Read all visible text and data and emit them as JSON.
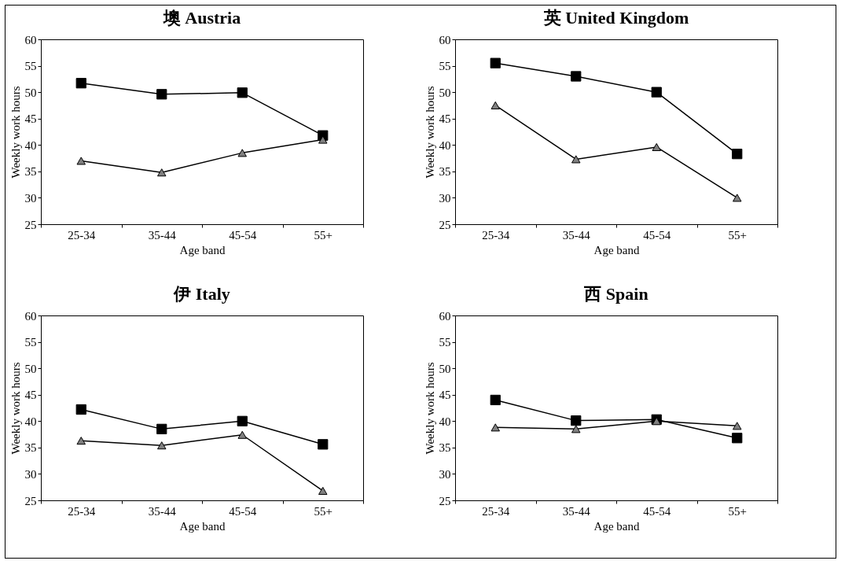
{
  "chart_data": [
    {
      "type": "line",
      "title": "墺 Austria",
      "xlabel": "Age band",
      "ylabel": "Weekly work hours",
      "categories": [
        "25-34",
        "35-44",
        "45-54",
        "55+"
      ],
      "ylim": [
        25,
        60
      ],
      "yticks": [
        25,
        30,
        35,
        40,
        45,
        50,
        55,
        60
      ],
      "series": [
        {
          "color": "#000000",
          "marker": "square",
          "values": [
            51.7,
            49.6,
            49.9,
            41.8
          ]
        },
        {
          "color": "#808080",
          "marker": "triangle",
          "values": [
            37,
            34.8,
            38.5,
            41
          ]
        }
      ]
    },
    {
      "type": "line",
      "title": "英 United Kingdom",
      "xlabel": "Age band",
      "ylabel": "Weekly work hours",
      "categories": [
        "25-34",
        "35-44",
        "45-54",
        "55+"
      ],
      "ylim": [
        25,
        60
      ],
      "yticks": [
        25,
        30,
        35,
        40,
        45,
        50,
        55,
        60
      ],
      "series": [
        {
          "color": "#000000",
          "marker": "square",
          "values": [
            55.5,
            53,
            50,
            38.3
          ]
        },
        {
          "color": "#808080",
          "marker": "triangle",
          "values": [
            47.5,
            37.3,
            39.6,
            30
          ]
        }
      ]
    },
    {
      "type": "line",
      "title": "伊 Italy",
      "xlabel": "Age band",
      "ylabel": "Weekly work hours",
      "categories": [
        "25-34",
        "35-44",
        "45-54",
        "55+"
      ],
      "ylim": [
        25,
        60
      ],
      "yticks": [
        25,
        30,
        35,
        40,
        45,
        50,
        55,
        60
      ],
      "series": [
        {
          "color": "#000000",
          "marker": "square",
          "values": [
            42.2,
            38.5,
            40,
            35.6
          ]
        },
        {
          "color": "#808080",
          "marker": "triangle",
          "values": [
            36.3,
            35.4,
            37.4,
            26.8
          ]
        }
      ]
    },
    {
      "type": "line",
      "title": "西 Spain",
      "xlabel": "Age band",
      "ylabel": "Weekly work hours",
      "categories": [
        "25-34",
        "35-44",
        "45-54",
        "55+"
      ],
      "ylim": [
        25,
        60
      ],
      "yticks": [
        25,
        30,
        35,
        40,
        45,
        50,
        55,
        60
      ],
      "series": [
        {
          "color": "#000000",
          "marker": "square",
          "values": [
            44,
            40.1,
            40.3,
            36.8
          ]
        },
        {
          "color": "#808080",
          "marker": "triangle",
          "values": [
            38.8,
            38.5,
            40,
            39.1
          ]
        }
      ]
    }
  ]
}
